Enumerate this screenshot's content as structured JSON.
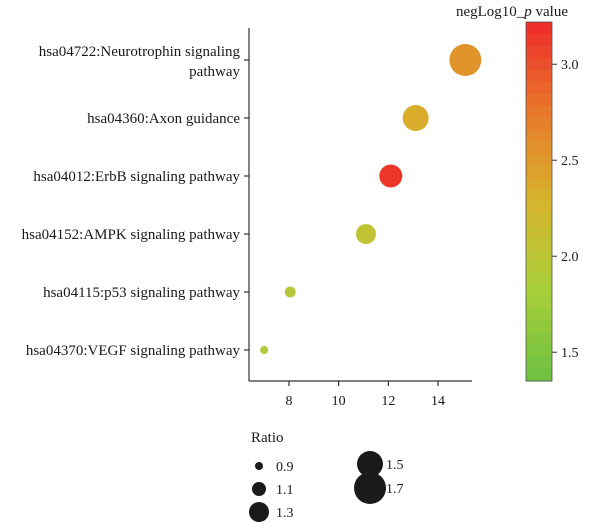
{
  "chart_data": {
    "type": "scatter",
    "subtype": "bubble",
    "title": "",
    "xlabel": "",
    "ylabel": "",
    "xlim": [
      6.7,
      15.4
    ],
    "xticks": [
      8,
      10,
      12,
      14
    ],
    "grid": false,
    "categories": [
      [
        "hsa04722:Neurotrophin signaling",
        "pathway"
      ],
      [
        "hsa04360:Axon guidance"
      ],
      [
        "hsa04012:ErbB signaling pathway"
      ],
      [
        "hsa04152:AMPK signaling pathway"
      ],
      [
        "hsa04115:p53 signaling pathway"
      ],
      [
        "hsa04370:VEGF signaling pathway"
      ]
    ],
    "points": [
      {
        "x": 15.1,
        "ratio": 1.7,
        "neglog10_p": 2.55
      },
      {
        "x": 13.1,
        "ratio": 1.5,
        "neglog10_p": 2.35
      },
      {
        "x": 12.1,
        "ratio": 1.4,
        "neglog10_p": 3.15
      },
      {
        "x": 11.1,
        "ratio": 1.3,
        "neglog10_p": 2.05
      },
      {
        "x": 8.05,
        "ratio": 1.0,
        "neglog10_p": 1.95
      },
      {
        "x": 7.0,
        "ratio": 0.9,
        "neglog10_p": 1.9
      }
    ],
    "size_legend": {
      "title": "Ratio",
      "items": [
        "0.9",
        "1.1",
        "1.3",
        "1.5",
        "1.7"
      ],
      "values": [
        0.9,
        1.1,
        1.3,
        1.5,
        1.7
      ],
      "color": "#1a1a1a"
    },
    "color_legend": {
      "title": "negLog10_",
      "title_italic": "p",
      "title_suffix": " value",
      "range": [
        1.35,
        3.22
      ],
      "ticks": [
        "1.5",
        "2.0",
        "2.5",
        "3.0"
      ],
      "tick_values": [
        1.5,
        2.0,
        2.5,
        3.0
      ],
      "gradient": [
        "#6cc040",
        "#a8cf3a",
        "#d6b42c",
        "#e8782a",
        "#ee2a2a"
      ],
      "placement": "right"
    }
  }
}
